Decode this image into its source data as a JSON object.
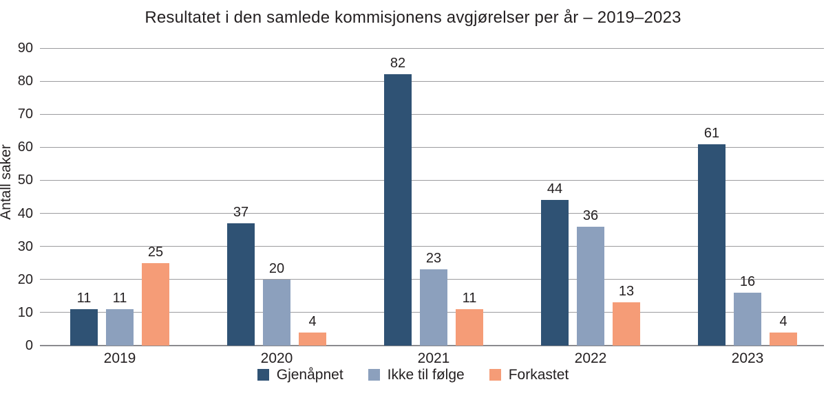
{
  "chart_data": {
    "type": "bar",
    "title": "Resultatet i den samlede kommisjonens avgjørelser per år – 2019–2023",
    "xlabel": "",
    "ylabel": "Antall saker",
    "categories": [
      "2019",
      "2020",
      "2021",
      "2022",
      "2023"
    ],
    "series": [
      {
        "name": "Gjenåpnet",
        "color": "#2F5274",
        "values": [
          11,
          37,
          82,
          44,
          61
        ]
      },
      {
        "name": "Ikke til følge",
        "color": "#8CA0BD",
        "values": [
          11,
          20,
          23,
          36,
          16
        ]
      },
      {
        "name": "Forkastet",
        "color": "#F59C77",
        "values": [
          25,
          4,
          11,
          13,
          4
        ]
      }
    ],
    "ylim": [
      0,
      90
    ],
    "ytick_step": 10,
    "yticks": [
      0,
      10,
      20,
      30,
      40,
      50,
      60,
      70,
      80,
      90
    ],
    "grid": true,
    "legend_position": "bottom",
    "grid_color": "#9B9B9E",
    "axis_color": "#8A8A8E",
    "text_color": "#231F20"
  }
}
